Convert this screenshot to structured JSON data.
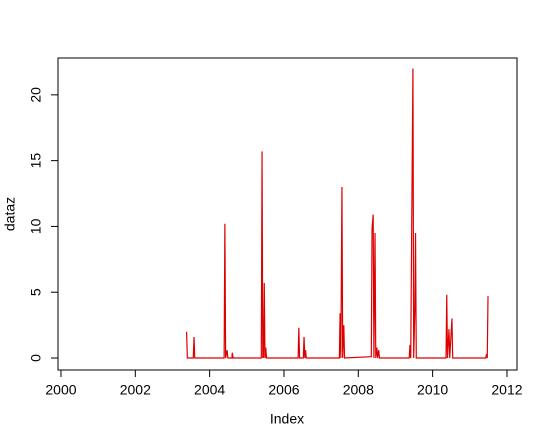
{
  "chart_data": {
    "type": "line",
    "x_label": "Index",
    "y_label": "dataz",
    "color": "#dd0000",
    "x": [
      2003.38,
      2003.4,
      2003.56,
      2003.58,
      2003.6,
      2004.39,
      2004.41,
      2004.43,
      2004.47,
      2004.49,
      2004.6,
      2004.61,
      2004.63,
      2005.39,
      2005.41,
      2005.43,
      2005.44,
      2005.45,
      2005.47,
      2005.49,
      2005.51,
      2005.53,
      2006.38,
      2006.4,
      2006.42,
      2006.52,
      2006.54,
      2006.56,
      2006.58,
      2006.6,
      2007.49,
      2007.51,
      2007.53,
      2007.56,
      2007.58,
      2007.61,
      2007.63,
      2008.35,
      2008.37,
      2008.4,
      2008.42,
      2008.45,
      2008.47,
      2008.5,
      2008.52,
      2008.55,
      2008.57,
      2009.37,
      2009.39,
      2009.41,
      2009.47,
      2009.49,
      2009.52,
      2009.54,
      2009.56,
      2010.36,
      2010.38,
      2010.4,
      2010.44,
      2010.46,
      2010.52,
      2010.54,
      2011.43,
      2011.45,
      2011.47,
      2011.49
    ],
    "values": [
      2.0,
      0,
      0,
      1.6,
      0,
      0,
      10.2,
      0,
      0.6,
      0,
      0,
      0.4,
      0,
      0,
      15.7,
      0,
      2,
      0,
      5.7,
      0,
      0.8,
      0,
      0,
      2.3,
      0,
      0,
      1.6,
      0,
      0.6,
      0,
      0,
      3.4,
      0,
      13,
      0,
      2.5,
      0,
      0.1,
      9.8,
      10.9,
      0,
      9.5,
      0,
      0.8,
      0,
      0.6,
      0,
      0,
      1,
      0,
      22,
      0,
      3.6,
      9.5,
      0,
      0,
      4.8,
      0,
      2.2,
      0,
      3,
      0,
      0,
      0.3,
      0,
      4.7
    ],
    "xlim": [
      1999.92,
      2012.27
    ],
    "ylim": [
      -0.91,
      22.8
    ],
    "xticks": [
      2000,
      2002,
      2004,
      2006,
      2008,
      2010,
      2012
    ],
    "yticks": [
      0,
      5,
      10,
      15,
      20
    ]
  }
}
